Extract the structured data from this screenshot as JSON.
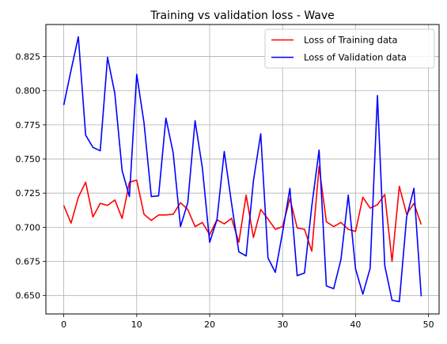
{
  "chart_data": {
    "type": "line",
    "title": "Training vs validation loss - Wave",
    "xlabel": "",
    "ylabel": "",
    "xlim": [
      -2.45,
      51.45
    ],
    "ylim": [
      0.6365,
      0.8485
    ],
    "xticks": [
      0,
      10,
      20,
      30,
      40,
      50
    ],
    "yticks": [
      0.65,
      0.675,
      0.7,
      0.725,
      0.75,
      0.775,
      0.8,
      0.825
    ],
    "ytick_labels": [
      "0.650",
      "0.675",
      "0.700",
      "0.725",
      "0.750",
      "0.775",
      "0.800",
      "0.825"
    ],
    "grid": true,
    "legend_position": "top-right",
    "x": [
      0,
      1,
      2,
      3,
      4,
      5,
      6,
      7,
      8,
      9,
      10,
      11,
      12,
      13,
      14,
      15,
      16,
      17,
      18,
      19,
      20,
      21,
      22,
      23,
      24,
      25,
      26,
      27,
      28,
      29,
      30,
      31,
      32,
      33,
      34,
      35,
      36,
      37,
      38,
      39,
      40,
      41,
      42,
      43,
      44,
      45,
      46,
      47,
      48,
      49
    ],
    "series": [
      {
        "name": "Loss of Training data",
        "color": "#ff0000",
        "values": [
          0.716,
          0.703,
          0.722,
          0.733,
          0.7075,
          0.7175,
          0.716,
          0.72,
          0.7065,
          0.733,
          0.7345,
          0.7095,
          0.705,
          0.709,
          0.709,
          0.7095,
          0.718,
          0.713,
          0.7005,
          0.7035,
          0.6945,
          0.7055,
          0.7025,
          0.7065,
          0.689,
          0.7235,
          0.6925,
          0.713,
          0.706,
          0.6985,
          0.7005,
          0.721,
          0.6995,
          0.6985,
          0.6825,
          0.7445,
          0.704,
          0.7005,
          0.7035,
          0.6985,
          0.697,
          0.722,
          0.714,
          0.7165,
          0.724,
          0.675,
          0.73,
          0.7095,
          0.7175,
          0.702
        ]
      },
      {
        "name": "Loss of Validation data",
        "color": "#0000ff",
        "values": [
          0.7895,
          0.815,
          0.8395,
          0.7675,
          0.7585,
          0.756,
          0.8245,
          0.798,
          0.7415,
          0.7225,
          0.812,
          0.7765,
          0.7225,
          0.723,
          0.78,
          0.7545,
          0.7005,
          0.718,
          0.778,
          0.7435,
          0.689,
          0.7055,
          0.7555,
          0.7175,
          0.682,
          0.679,
          0.734,
          0.7685,
          0.6775,
          0.667,
          0.6965,
          0.7285,
          0.6645,
          0.6665,
          0.7155,
          0.7565,
          0.657,
          0.655,
          0.6765,
          0.7235,
          0.6695,
          0.651,
          0.67,
          0.7965,
          0.672,
          0.6465,
          0.6455,
          0.7075,
          0.7285,
          0.6495
        ]
      }
    ]
  }
}
